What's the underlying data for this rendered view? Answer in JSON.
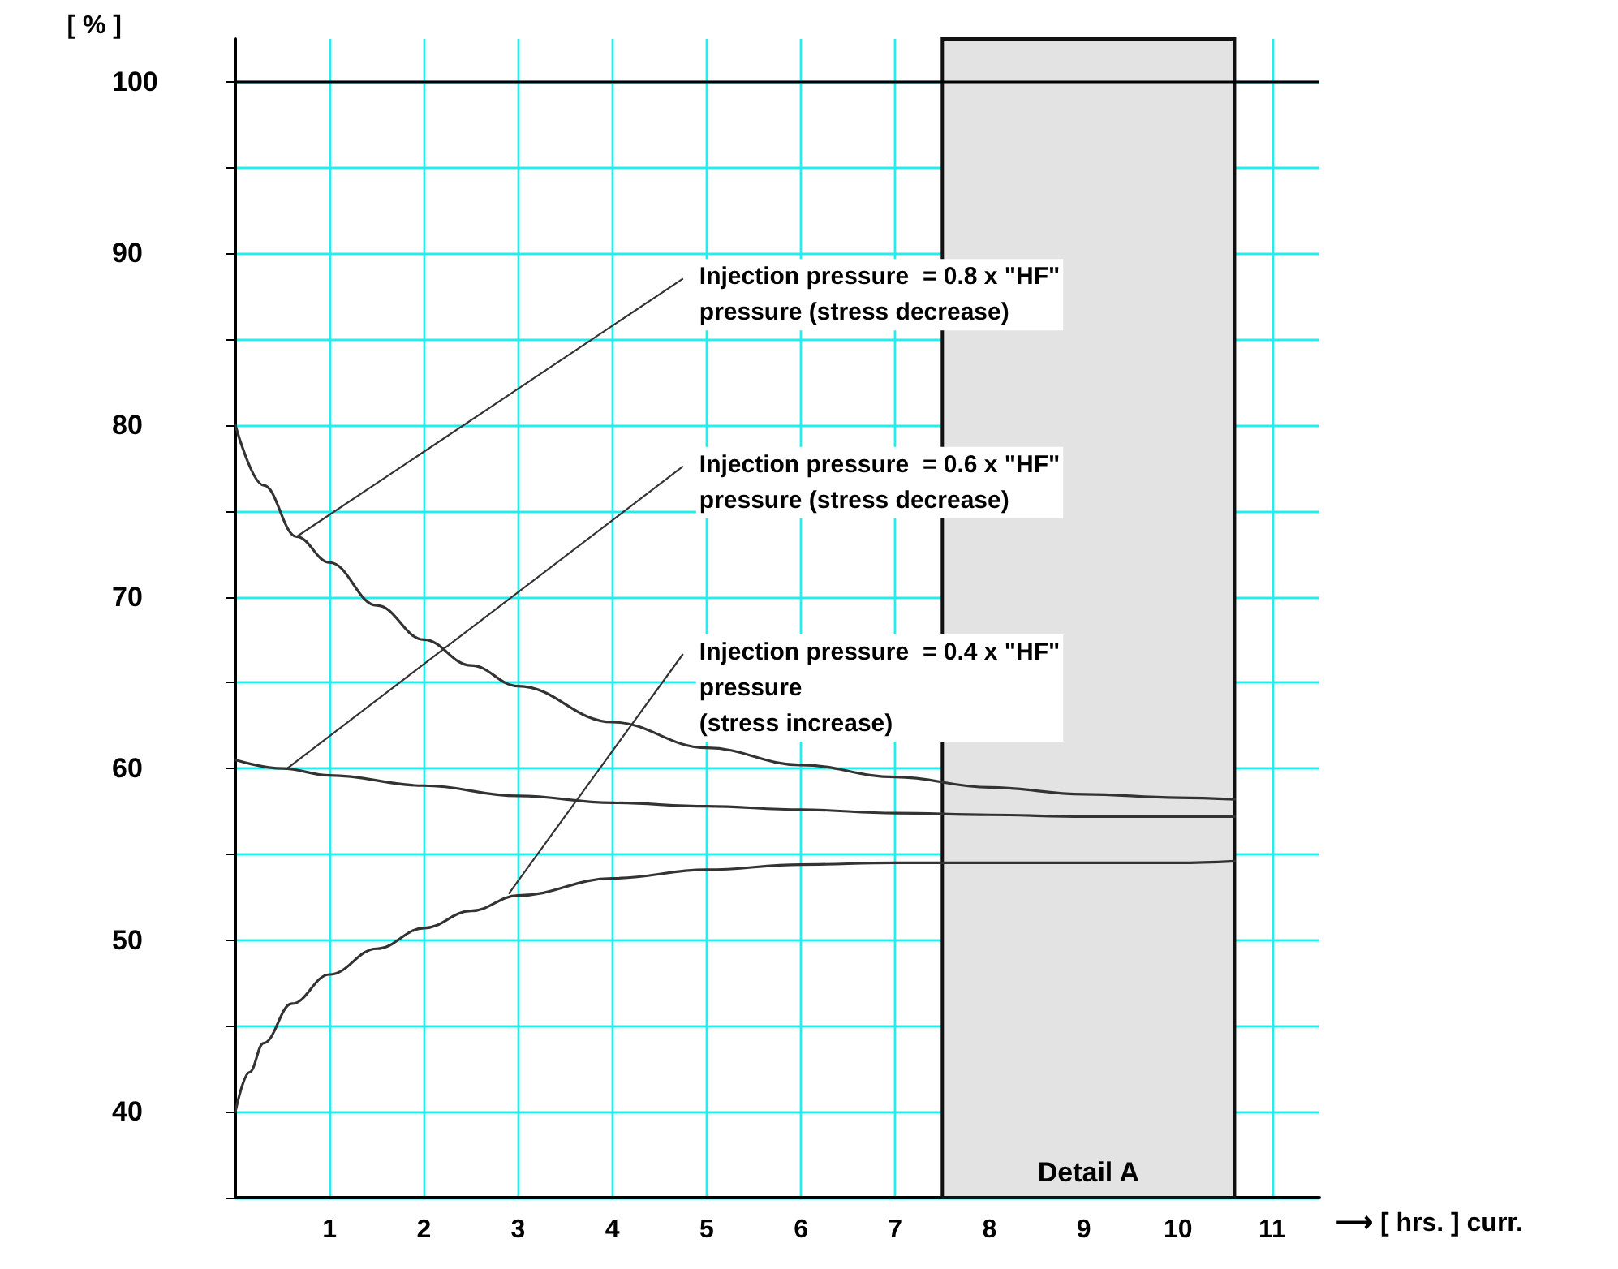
{
  "chart_data": {
    "type": "line",
    "ylabel": "[ % ]",
    "xlabel": "⟶ [ hrs. ] curr.",
    "xlim": [
      0,
      11.5
    ],
    "xticks": [
      1,
      2,
      3,
      4,
      5,
      6,
      7,
      8,
      9,
      10,
      11
    ],
    "ylim": [
      35,
      102.5
    ],
    "yticks": [
      {
        "value": 35,
        "label": null
      },
      40,
      {
        "value": 45,
        "label": null
      },
      50,
      {
        "value": 55,
        "label": null
      },
      60,
      {
        "value": 65,
        "label": null
      },
      70,
      {
        "value": 75,
        "label": null
      },
      80,
      {
        "value": 85,
        "label": null
      },
      90,
      {
        "value": 95,
        "label": null
      },
      100
    ],
    "grid": true,
    "marker": "none",
    "line_style": "solid",
    "series": [
      {
        "color": "#333333",
        "x": [
          0,
          0.3,
          0.65,
          1,
          1.5,
          2,
          2.5,
          3,
          4,
          5,
          6,
          7,
          8,
          9,
          10,
          10.6
        ],
        "values": [
          80,
          76.5,
          73.5,
          72,
          69.5,
          67.5,
          66,
          64.8,
          62.7,
          61.2,
          60.2,
          59.5,
          58.9,
          58.5,
          58.3,
          58.2
        ]
      },
      {
        "color": "#333333",
        "x": [
          0,
          0.5,
          1,
          2,
          3,
          4,
          5,
          6,
          7,
          8,
          9,
          10,
          10.6
        ],
        "values": [
          60.5,
          60,
          59.6,
          59,
          58.4,
          58,
          57.8,
          57.6,
          57.4,
          57.3,
          57.2,
          57.2,
          57.2
        ]
      },
      {
        "color": "#333333",
        "x": [
          0,
          0.15,
          0.3,
          0.6,
          1,
          1.5,
          2,
          2.5,
          3,
          4,
          5,
          6,
          7,
          8,
          9,
          10,
          10.6
        ],
        "values": [
          40,
          42.3,
          44,
          46.3,
          48,
          49.5,
          50.7,
          51.7,
          52.6,
          53.6,
          54.1,
          54.4,
          54.5,
          54.5,
          54.5,
          54.5,
          54.6
        ]
      }
    ],
    "ref_lines": [
      {
        "axis": "y",
        "value": 100,
        "color": "#000000"
      }
    ],
    "bands": [
      {
        "axis": "x",
        "from": 7.5,
        "to": 10.6,
        "label": "Detail A",
        "color": "#e3e3e3"
      }
    ],
    "annotations": [
      {
        "text": "Injection pressure  = 0.8 x \"HF\"\npressure (stress decrease)",
        "x": 0.65,
        "y": 73.5
      },
      {
        "text": "Injection pressure  = 0.6 x \"HF\"\npressure (stress decrease)",
        "x": 0.55,
        "y": 60
      },
      {
        "text": "Injection pressure  = 0.4 x \"HF\"\npressure\n(stress increase)",
        "x": 2.9,
        "y": 52.7
      }
    ]
  }
}
